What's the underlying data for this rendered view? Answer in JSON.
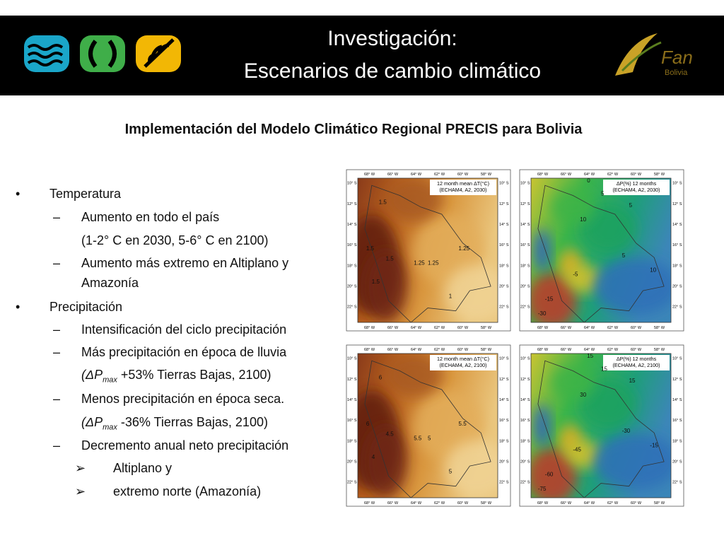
{
  "header": {
    "title_lines": [
      "Investigación:",
      "Escenarios de cambio climático"
    ],
    "logo_right": {
      "main": "Fan",
      "sub": "Bolivia"
    }
  },
  "subtitle": "Implementación del Modelo Climático Regional PRECIS para Bolivia",
  "bullets": [
    {
      "marker": "•",
      "text": "Temperatura"
    },
    {
      "marker": "–",
      "text": "Aumento en todo el país"
    },
    {
      "text": "(1-2°  C en 2030, 5-6°  C en 2100)"
    },
    {
      "marker": "–",
      "text": "Aumento más extremo en Altiplano y",
      "text2": "Amazonía"
    },
    {
      "marker": "•",
      "text": "Precipitación"
    },
    {
      "marker": "–",
      "text": "Intensificación del ciclo precipitación"
    },
    {
      "marker": "–",
      "text": "Más precipitación en época de lluvia"
    },
    {
      "prefix": "(ΔP",
      "sub": "max",
      "suffix": " +53% Tierras Bajas, 2100)"
    },
    {
      "marker": "–",
      "text": "Menos precipitación en época seca."
    },
    {
      "prefix": "(ΔP",
      "sub": "max",
      "suffix": " -36% Tierras Bajas, 2100)"
    },
    {
      "marker": "–",
      "text": "Decremento anual neto precipitación"
    },
    {
      "marker": "➢",
      "text": "Altiplano y"
    },
    {
      "marker": "➢",
      "text": "extremo norte (Amazonía)"
    }
  ],
  "maps": {
    "lon_labels": [
      "68° W",
      "66° W",
      "64° W",
      "62° W",
      "60° W",
      "58° W"
    ],
    "lat_labels": [
      "10° S",
      "12° S",
      "14° S",
      "16° S",
      "18° S",
      "20° S",
      "22° S"
    ],
    "panels": [
      {
        "kind": "temp",
        "caption": [
          "12 month mean ΔT(°C)",
          "(ECHAM4, A2, 2030)"
        ],
        "contours": [
          "1.5",
          "1.5",
          "1.25",
          "1.25",
          "1.25",
          "1.5",
          "1.5",
          "1"
        ]
      },
      {
        "kind": "prec",
        "caption": [
          "ΔP(%) 12 months",
          "(ECHAM4, A2, 2030)"
        ],
        "contours": [
          "0",
          "5",
          "5",
          "10",
          "10",
          "5",
          "-5",
          "-15",
          "-30"
        ]
      },
      {
        "kind": "temp",
        "caption": [
          "12 month mean ΔT(°C)",
          "(ECHAM4, A2, 2100)"
        ],
        "contours": [
          "6",
          "6",
          "5.5",
          "5.5",
          "5",
          "4.5",
          "4",
          "5"
        ]
      },
      {
        "kind": "prec",
        "caption": [
          "ΔP(%) 12 months",
          "(ECHAM4, A2, 2100)"
        ],
        "contours": [
          "15",
          "15",
          "15",
          "30",
          "-15",
          "-30",
          "-45",
          "-60",
          "-75"
        ]
      }
    ]
  }
}
